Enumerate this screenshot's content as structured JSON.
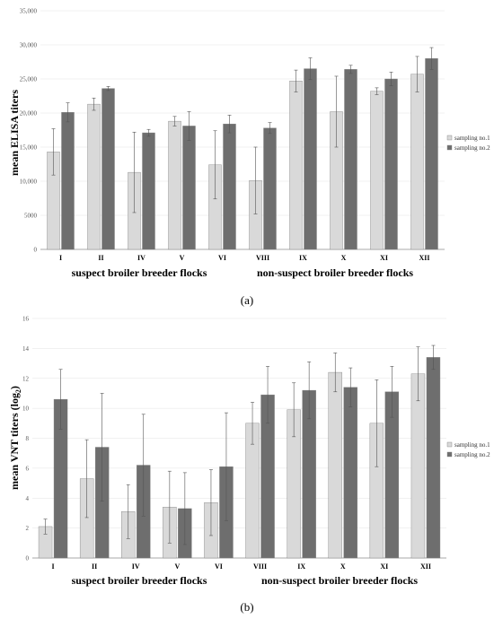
{
  "chart_data": [
    {
      "type": "bar",
      "ylabel": "mean ELISA titers",
      "ylim": [
        0,
        35000
      ],
      "ytick_labels": [
        "0",
        "5000",
        "10,000",
        "15,000",
        "20,000",
        "25,000",
        "30,000",
        "35,000"
      ],
      "categories": [
        "I",
        "II",
        "IV",
        "V",
        "VI",
        "VIII",
        "IX",
        "X",
        "XI",
        "XII"
      ],
      "group_labels": [
        "suspect broiler breeder flocks",
        "non-suspect broiler breeder flocks"
      ],
      "panel_label": "(a)",
      "grid": true,
      "legend_position": "right",
      "series": [
        {
          "name": "sampling no.1",
          "color": "#d9d9d9",
          "values": [
            14300,
            21300,
            11300,
            18800,
            12400,
            10100,
            24700,
            20200,
            23200,
            25700
          ],
          "errors": [
            3400,
            900,
            5900,
            700,
            5000,
            4900,
            1600,
            5200,
            500,
            2600
          ]
        },
        {
          "name": "sampling no.2",
          "color": "#6e6e6e",
          "values": [
            20100,
            23600,
            17100,
            18100,
            18400,
            17800,
            26500,
            26400,
            25000,
            28000
          ],
          "errors": [
            1400,
            300,
            500,
            2100,
            1300,
            800,
            1600,
            600,
            1000,
            1600
          ]
        }
      ]
    },
    {
      "type": "bar",
      "ylabel": "mean VNT titers (log",
      "ylabel_sub": "2",
      "ylabel_end": ")",
      "ylim": [
        0,
        16
      ],
      "ytick_labels": [
        "0",
        "2",
        "4",
        "6",
        "8",
        "10",
        "12",
        "14",
        "16"
      ],
      "categories": [
        "I",
        "II",
        "IV",
        "V",
        "VI",
        "VIII",
        "IX",
        "X",
        "XI",
        "XII"
      ],
      "group_labels": [
        "suspect broiler breeder flocks",
        "non-suspect broiler breeder flocks"
      ],
      "panel_label": "(b)",
      "grid": true,
      "legend_position": "right",
      "series": [
        {
          "name": "sampling no.1",
          "color": "#d9d9d9",
          "values": [
            2.1,
            5.3,
            3.1,
            3.4,
            3.7,
            9.0,
            9.9,
            12.4,
            9.0,
            12.3
          ],
          "errors": [
            0.5,
            2.6,
            1.8,
            2.4,
            2.2,
            1.4,
            1.8,
            1.3,
            2.9,
            1.8
          ]
        },
        {
          "name": "sampling no.2",
          "color": "#6e6e6e",
          "values": [
            10.6,
            7.4,
            6.2,
            3.3,
            6.1,
            10.9,
            11.2,
            11.4,
            11.1,
            13.4
          ],
          "errors": [
            2.0,
            3.6,
            3.4,
            2.4,
            3.6,
            1.9,
            1.9,
            1.3,
            1.7,
            0.8
          ]
        }
      ]
    }
  ]
}
